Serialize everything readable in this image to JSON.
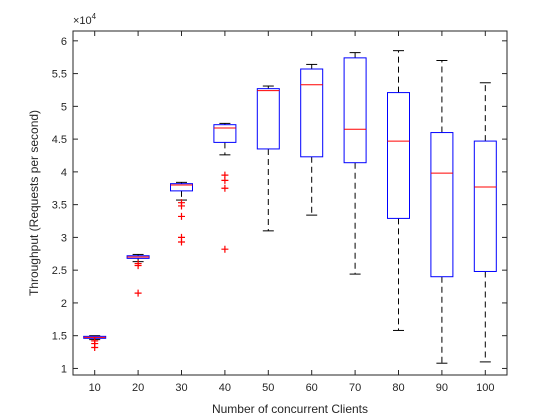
{
  "chart_data": {
    "type": "box",
    "xlabel": "Number of concurrent Clients",
    "ylabel": "Throughput (Requests per second)",
    "y_multiplier_base": "×10",
    "y_multiplier_exp": "4",
    "ylim": [
      0.9,
      6.15
    ],
    "y_ticks": [
      1,
      1.5,
      2,
      2.5,
      3,
      3.5,
      4,
      4.5,
      5,
      5.5,
      6
    ],
    "y_tick_labels": [
      "1",
      "1.5",
      "2",
      "2.5",
      "3",
      "3.5",
      "4",
      "4.5",
      "5",
      "5.5",
      "6"
    ],
    "categories": [
      "10",
      "20",
      "30",
      "40",
      "50",
      "60",
      "70",
      "80",
      "90",
      "100"
    ],
    "colors": {
      "box": "#0000ff",
      "median": "#ff0000",
      "whisker": "#000000",
      "outlier": "#ff0000",
      "axis": "#262626"
    },
    "boxes": [
      {
        "category": "10",
        "q1": 1.46,
        "median": 1.475,
        "q3": 1.49,
        "whisker_low": 1.44,
        "whisker_high": 1.5,
        "outliers": [
          1.38,
          1.42,
          1.32
        ]
      },
      {
        "category": "20",
        "q1": 2.68,
        "median": 2.7,
        "q3": 2.72,
        "whisker_low": 2.63,
        "whisker_high": 2.74,
        "outliers": [
          2.6,
          2.57,
          2.15
        ]
      },
      {
        "category": "30",
        "q1": 3.71,
        "median": 3.8,
        "q3": 3.82,
        "whisker_low": 3.57,
        "whisker_high": 3.84,
        "outliers": [
          3.53,
          3.48,
          3.32,
          3.0,
          2.93
        ]
      },
      {
        "category": "40",
        "q1": 4.45,
        "median": 4.67,
        "q3": 4.72,
        "whisker_low": 4.26,
        "whisker_high": 4.74,
        "outliers": [
          3.95,
          3.87,
          3.75,
          2.82
        ]
      },
      {
        "category": "50",
        "q1": 4.35,
        "median": 5.24,
        "q3": 5.27,
        "whisker_low": 3.1,
        "whisker_high": 5.31,
        "outliers": []
      },
      {
        "category": "60",
        "q1": 4.23,
        "median": 5.33,
        "q3": 5.57,
        "whisker_low": 3.34,
        "whisker_high": 5.64,
        "outliers": []
      },
      {
        "category": "70",
        "q1": 4.14,
        "median": 4.65,
        "q3": 5.74,
        "whisker_low": 2.44,
        "whisker_high": 5.82,
        "outliers": []
      },
      {
        "category": "80",
        "q1": 3.29,
        "median": 4.47,
        "q3": 5.21,
        "whisker_low": 1.58,
        "whisker_high": 5.85,
        "outliers": []
      },
      {
        "category": "90",
        "q1": 2.4,
        "median": 3.98,
        "q3": 4.6,
        "whisker_low": 1.08,
        "whisker_high": 5.7,
        "outliers": []
      },
      {
        "category": "100",
        "q1": 2.48,
        "median": 3.77,
        "q3": 4.47,
        "whisker_low": 1.1,
        "whisker_high": 5.36,
        "outliers": []
      }
    ]
  }
}
